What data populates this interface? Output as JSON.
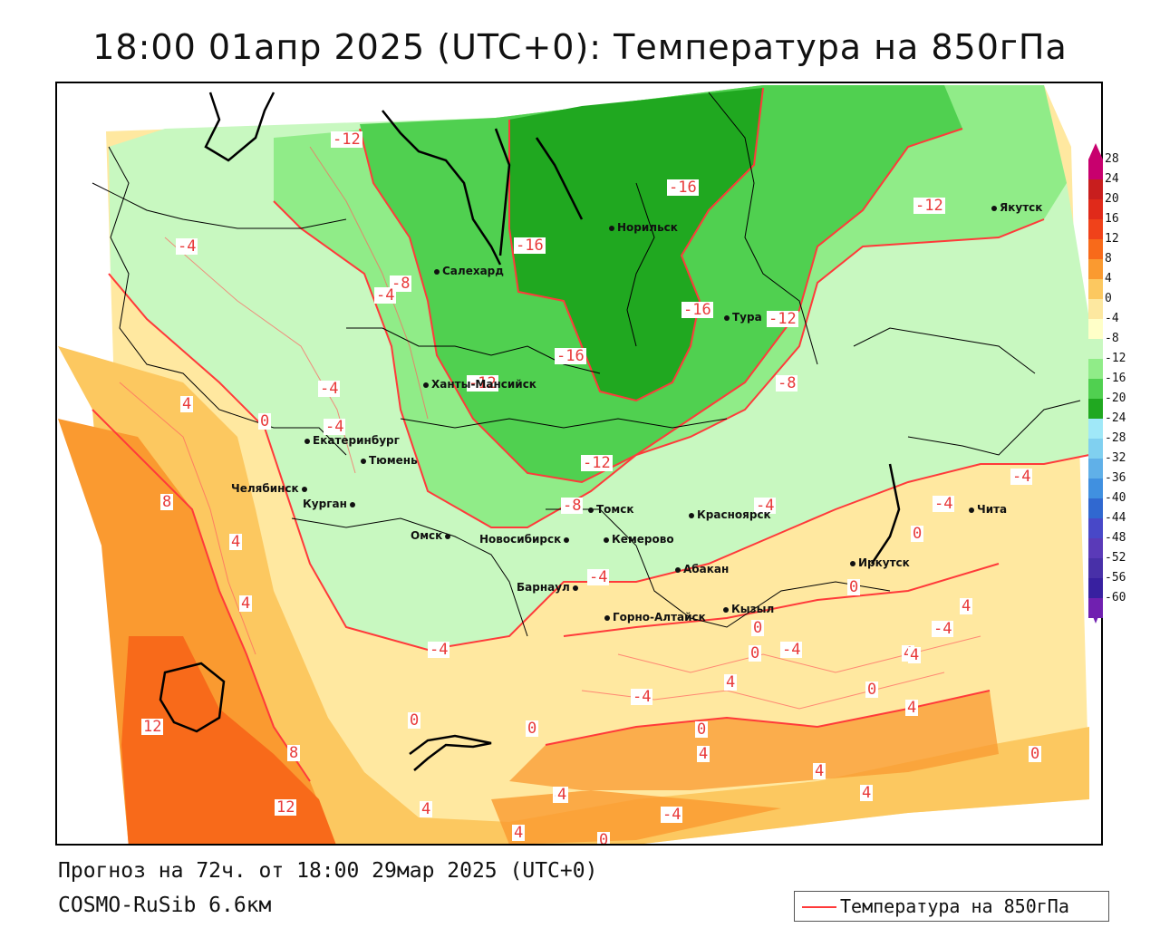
{
  "title": "18:00 01апр 2025 (UTC+0): Температура на 850гПа",
  "footer": {
    "forecast": "Прогноз на 72ч. от 18:00 29мар 2025 (UTC+0)",
    "model": "COSMO-RuSib 6.6км"
  },
  "legend": {
    "line_label": "Температура на 850гПа",
    "line_color": "#ff3a3a"
  },
  "colorbar": {
    "labels": [
      "28",
      "24",
      "20",
      "16",
      "12",
      "8",
      "4",
      "0",
      "-4",
      "-8",
      "-12",
      "-16",
      "-20",
      "-24",
      "-28",
      "-32",
      "-36",
      "-40",
      "-44",
      "-48",
      "-52",
      "-56",
      "-60"
    ],
    "colors": [
      "#c8006e",
      "#c81e1e",
      "#e02a1a",
      "#f0421a",
      "#f86a1a",
      "#fa9a30",
      "#fcc860",
      "#fde8a0",
      "#ffffc8",
      "#c8f8c0",
      "#90ec88",
      "#50d050",
      "#20a820",
      "#a0e8f8",
      "#80d0f0",
      "#60b0e8",
      "#4090e0",
      "#3068d0",
      "#4848c8",
      "#5a3ab8",
      "#4830a8",
      "#3820a0",
      "#7020b0"
    ]
  },
  "cities": [
    {
      "id": "yakutsk",
      "name": "Якутск"
    },
    {
      "id": "norilsk",
      "name": "Норильск"
    },
    {
      "id": "salekhard",
      "name": "Салехард"
    },
    {
      "id": "tura",
      "name": "Тура"
    },
    {
      "id": "khanty",
      "name": "Ханты-Мансийск"
    },
    {
      "id": "ekb",
      "name": "Екатеринбург"
    },
    {
      "id": "tyumen",
      "name": "Тюмень"
    },
    {
      "id": "chelyabinsk",
      "name": "Челябинск"
    },
    {
      "id": "kurgan",
      "name": "Курган"
    },
    {
      "id": "omsk",
      "name": "Омск"
    },
    {
      "id": "novosibirsk",
      "name": "Новосибирск"
    },
    {
      "id": "tomsk",
      "name": "Томск"
    },
    {
      "id": "kemerovo",
      "name": "Кемерово"
    },
    {
      "id": "krasnoyarsk",
      "name": "Красноярск"
    },
    {
      "id": "abakan",
      "name": "Абакан"
    },
    {
      "id": "barnaul",
      "name": "Барнаул"
    },
    {
      "id": "gorno",
      "name": "Горно-Алтайск"
    },
    {
      "id": "kyzyl",
      "name": "Кызыл"
    },
    {
      "id": "irkutsk",
      "name": "Иркутск"
    },
    {
      "id": "chita",
      "name": "Чита"
    }
  ],
  "contour_labels": [
    "-12",
    "-16",
    "-16",
    "-12",
    "-4",
    "-8",
    "-4",
    "-16",
    "-12",
    "-16",
    "-4",
    "-4",
    "-12",
    "-12",
    "-8",
    "4",
    "0",
    "-8",
    "-4",
    "-4",
    "-4",
    "8",
    "4",
    "4",
    "12",
    "8",
    "12",
    "-4",
    "0",
    "0",
    "4",
    "4",
    "4",
    "-4",
    "0",
    "0",
    "-4",
    "4",
    "0",
    "4",
    "4",
    "0",
    "4",
    "4",
    "4",
    "0",
    "4",
    "-4",
    "4",
    "4",
    "-4",
    "0",
    "-4",
    "4",
    "0",
    "0"
  ]
}
